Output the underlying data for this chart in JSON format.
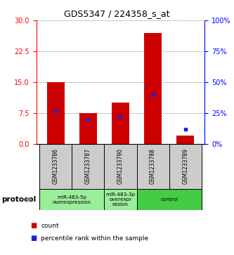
{
  "title": "GDS5347 / 224358_s_at",
  "samples": [
    "GSM1233786",
    "GSM1233787",
    "GSM1233790",
    "GSM1233788",
    "GSM1233789"
  ],
  "counts": [
    15.0,
    7.5,
    10.0,
    27.0,
    2.0
  ],
  "percentiles": [
    27.0,
    20.0,
    22.0,
    40.0,
    12.0
  ],
  "ylim_left": [
    0,
    30
  ],
  "ylim_right": [
    0,
    100
  ],
  "yticks_left": [
    0,
    7.5,
    15,
    22.5,
    30
  ],
  "yticks_right": [
    0,
    25,
    50,
    75,
    100
  ],
  "bar_color": "#cc0000",
  "percentile_color": "#2222cc",
  "bar_width": 0.55,
  "protocol_groups": [
    {
      "label": "miR-483-5p\noverexpression",
      "start": 0,
      "end": 1,
      "color": "#99ee99"
    },
    {
      "label": "miR-483-3p\noverexpr\nession",
      "start": 2,
      "end": 2,
      "color": "#99ee99"
    },
    {
      "label": "control",
      "start": 3,
      "end": 4,
      "color": "#44cc44"
    }
  ],
  "protocol_label": "protocol",
  "legend_count_label": "count",
  "legend_percentile_label": "percentile rank within the sample",
  "sample_box_color": "#cccccc",
  "grid_color": "#555555",
  "bg_color": "#ffffff"
}
